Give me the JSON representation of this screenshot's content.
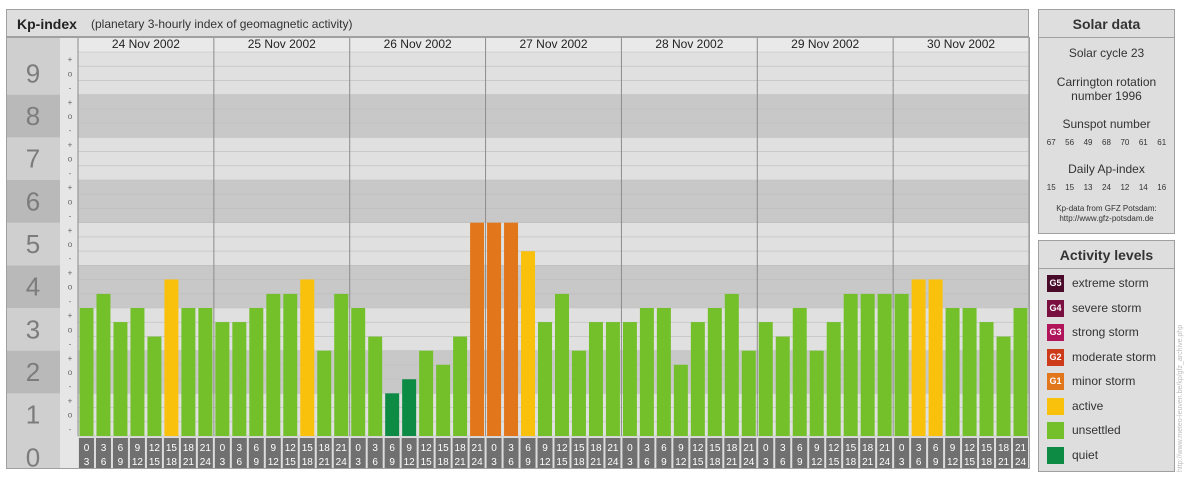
{
  "header": {
    "title": "Kp-index",
    "subtitle": "(planetary 3-hourly index of geomagnetic activity)"
  },
  "solar": {
    "title": "Solar data",
    "cycle": "Solar cycle 23",
    "carrington_1": "Carrington rotation",
    "carrington_2": "number 1996",
    "sunspot_label": "Sunspot number",
    "sunspot_values": [
      "67",
      "56",
      "49",
      "68",
      "70",
      "61",
      "61"
    ],
    "ap_label": "Daily Ap-index",
    "ap_values": [
      "15",
      "15",
      "13",
      "24",
      "12",
      "14",
      "16"
    ],
    "source_1": "Kp-data from GFZ Potsdam:",
    "source_2": "http://www.gfz-potsdam.de"
  },
  "legend": {
    "title": "Activity levels",
    "items": [
      {
        "code": "G5",
        "label": "extreme storm",
        "color": "#4a0a2a"
      },
      {
        "code": "G4",
        "label": "severe storm",
        "color": "#7a1040"
      },
      {
        "code": "G3",
        "label": "strong storm",
        "color": "#b0145a"
      },
      {
        "code": "G2",
        "label": "moderate storm",
        "color": "#cc3a1a"
      },
      {
        "code": "G1",
        "label": "minor storm",
        "color": "#e2761a"
      },
      {
        "code": "",
        "label": "active",
        "color": "#f9c10c"
      },
      {
        "code": "",
        "label": "unsettled",
        "color": "#74c02a"
      },
      {
        "code": "",
        "label": "quiet",
        "color": "#0d8a44"
      }
    ]
  },
  "watermark": "http://www.meteo-leuven.be/kp/gfz_archive.php",
  "chart_data": {
    "type": "bar",
    "ylim": [
      0,
      9
    ],
    "y_ticks": [
      "0",
      "1",
      "2",
      "3",
      "4",
      "5",
      "6",
      "7",
      "8",
      "9"
    ],
    "minor_tick_labels": [
      "+",
      "o",
      "-"
    ],
    "days": [
      "24 Nov 2002",
      "25 Nov 2002",
      "26 Nov 2002",
      "27 Nov 2002",
      "28 Nov 2002",
      "29 Nov 2002",
      "30 Nov 2002"
    ],
    "hour_labels_top": [
      "0",
      "3",
      "6",
      "9",
      "12",
      "15",
      "18",
      "21"
    ],
    "hour_labels_bottom": [
      "3",
      "6",
      "9",
      "12",
      "15",
      "18",
      "21",
      "24"
    ],
    "values": [
      3.0,
      3.33,
      2.67,
      3.0,
      2.33,
      3.67,
      3.0,
      3.0,
      2.67,
      2.67,
      3.0,
      3.33,
      3.33,
      3.67,
      2.0,
      3.33,
      3.0,
      2.33,
      1.0,
      1.33,
      2.0,
      1.67,
      2.33,
      5.0,
      5.0,
      5.0,
      4.33,
      2.67,
      3.33,
      2.0,
      2.67,
      2.67,
      2.67,
      3.0,
      3.0,
      1.67,
      2.67,
      3.0,
      3.33,
      2.0,
      2.67,
      2.33,
      3.0,
      2.0,
      2.67,
      3.33,
      3.33,
      3.33,
      3.33,
      3.67,
      3.67,
      3.0,
      3.0,
      2.67,
      2.33,
      3.0
    ],
    "colors": {
      "quiet": "#0d8a44",
      "unsettled": "#74c02a",
      "active": "#f9c10c",
      "minor_storm": "#e2761a"
    }
  }
}
